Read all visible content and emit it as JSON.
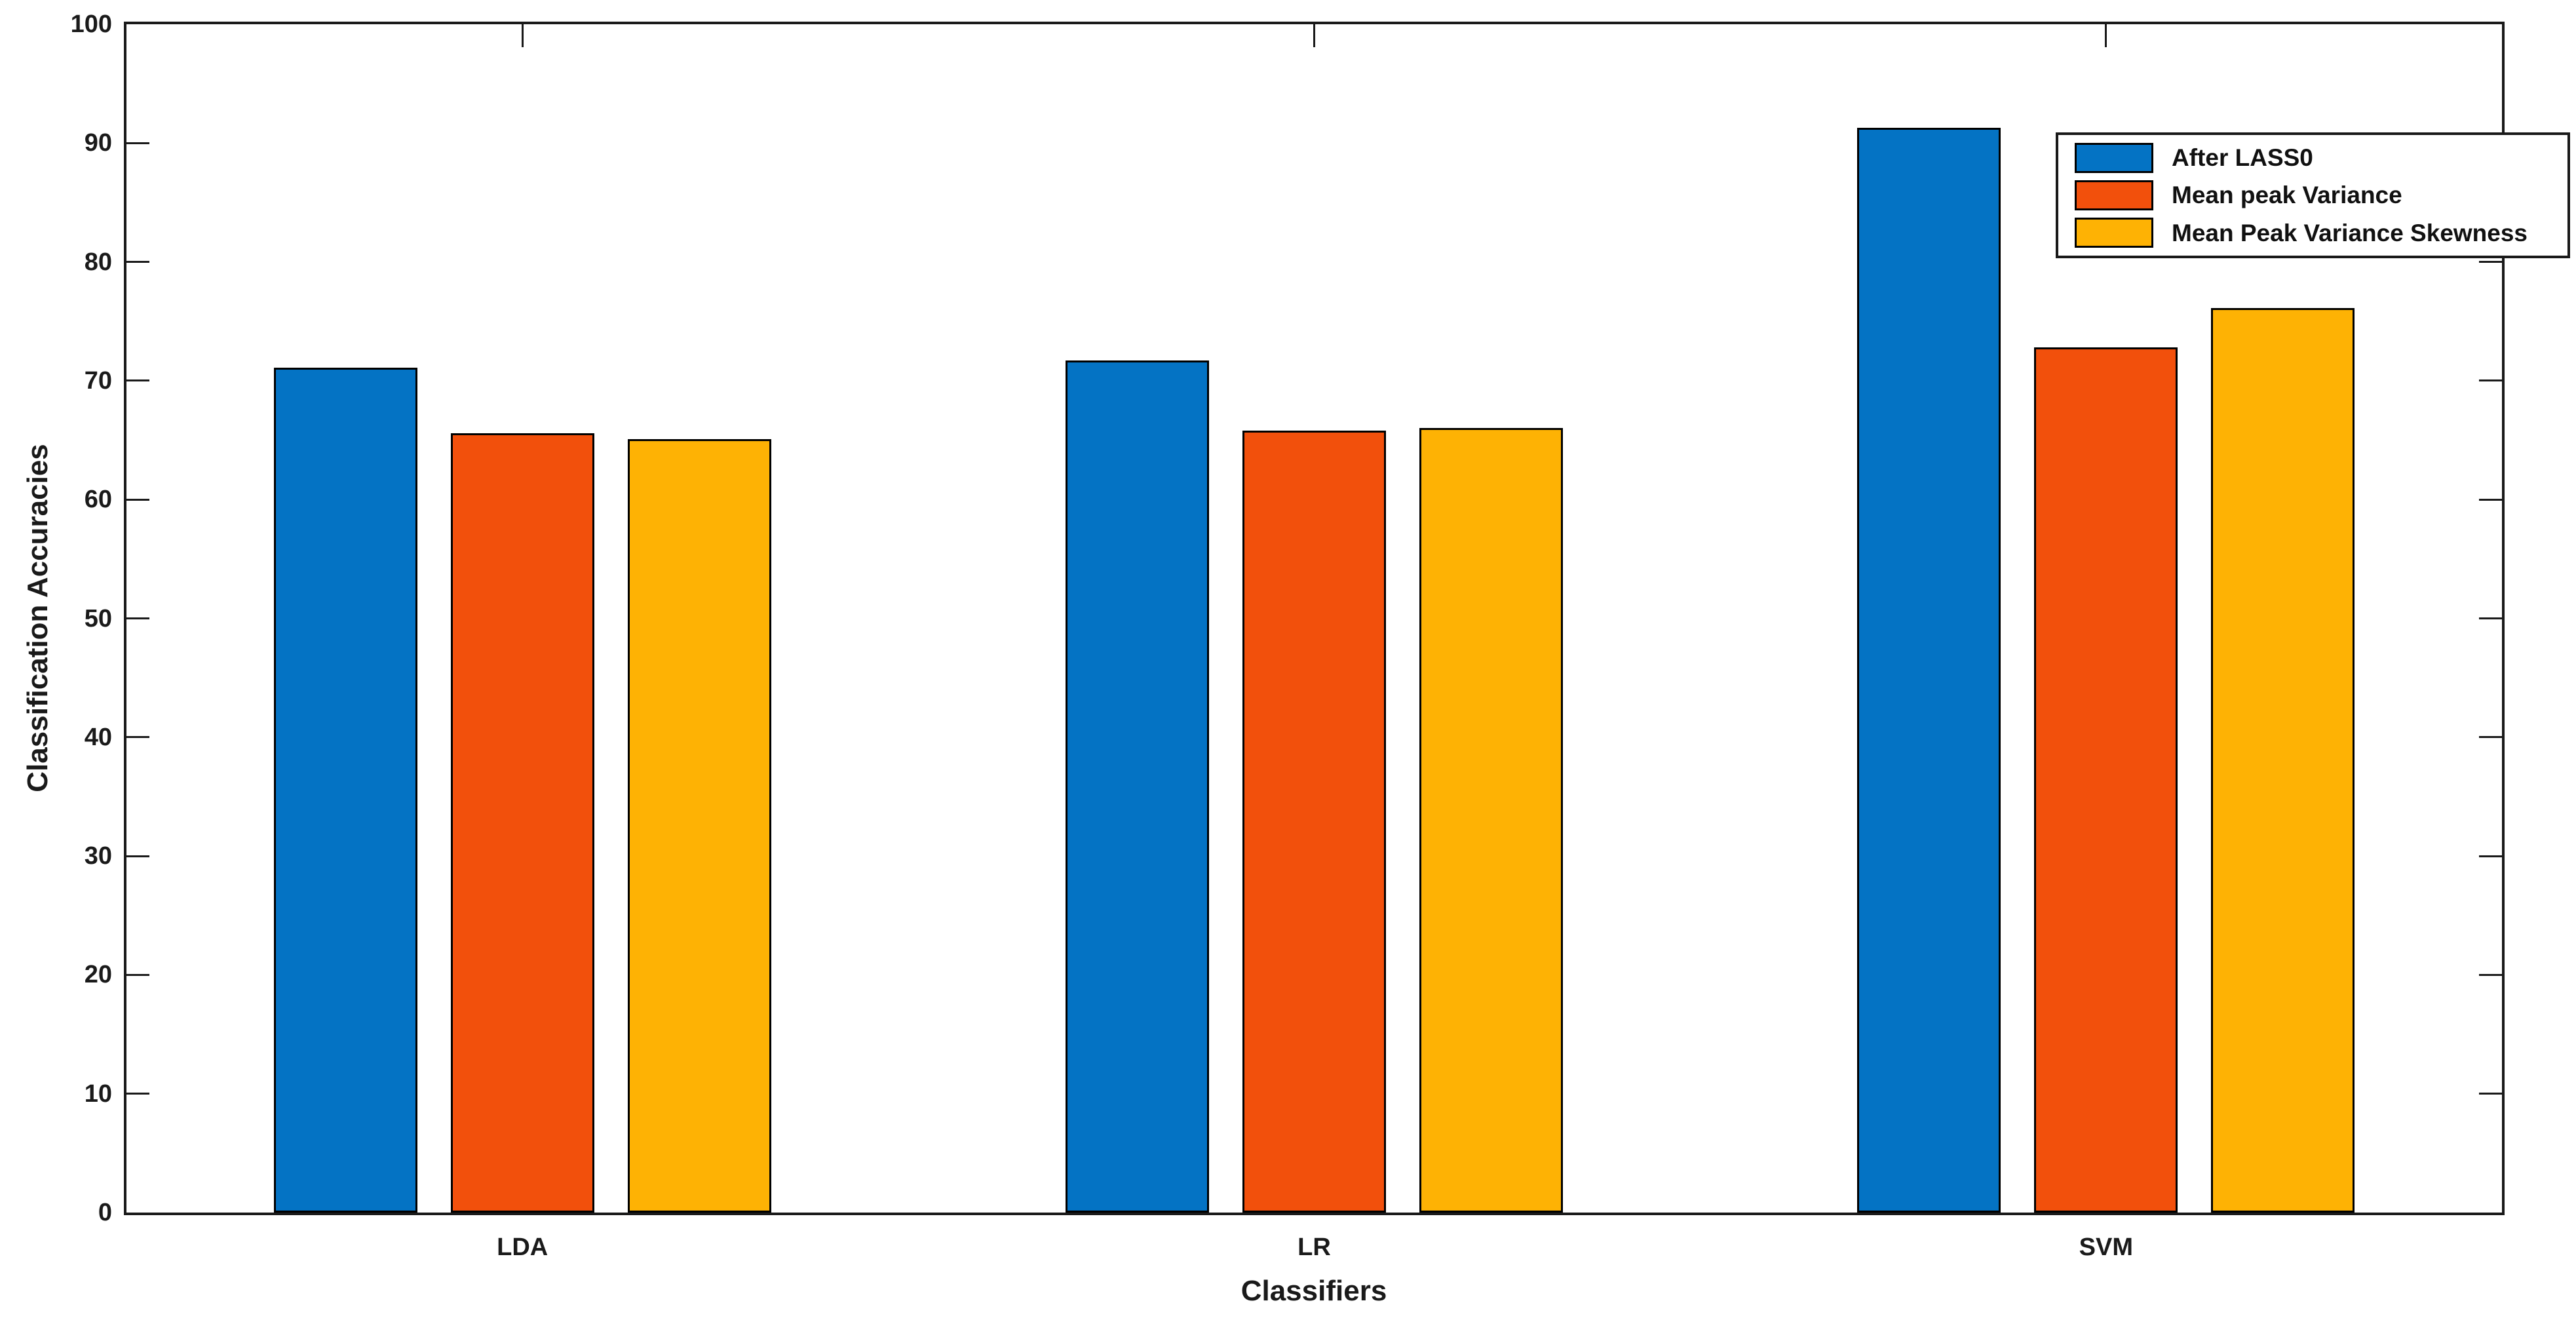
{
  "figure": {
    "background": "#ffffff",
    "axis_color": "#1a1a1a",
    "bar_edge_color": "#000000"
  },
  "chart_data": {
    "type": "bar",
    "title": "",
    "xlabel": "Classifiers",
    "ylabel": "Classification Accuracies",
    "categories": [
      "LDA",
      "LR",
      "SVM"
    ],
    "series": [
      {
        "name": "After LASS0",
        "color": "#0473C4",
        "values": [
          71.1,
          71.7,
          91.3
        ]
      },
      {
        "name": "Mean peak Variance",
        "color": "#F2500C",
        "values": [
          65.6,
          65.8,
          72.8
        ]
      },
      {
        "name": "Mean Peak Variance Skewness",
        "color": "#FEB204",
        "values": [
          65.1,
          66.0,
          76.1
        ]
      }
    ],
    "ylim": [
      0,
      100
    ],
    "ytick_step": 10,
    "ytick_labels": [
      "0",
      "10",
      "20",
      "30",
      "40",
      "50",
      "60",
      "70",
      "80",
      "90",
      "100"
    ],
    "grid": false,
    "legend_position": "top-right"
  }
}
